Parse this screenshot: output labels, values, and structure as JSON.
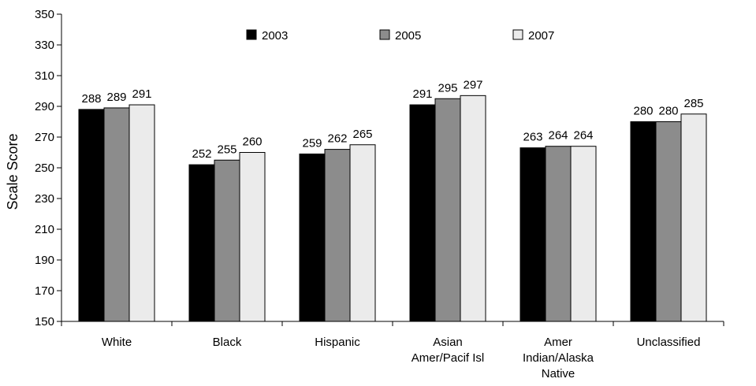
{
  "chart_data": {
    "type": "bar",
    "title": "",
    "xlabel": "",
    "ylabel": "Scale Score",
    "ylim": [
      150,
      350
    ],
    "yticks": [
      150,
      170,
      190,
      210,
      230,
      250,
      270,
      290,
      310,
      330,
      350
    ],
    "grid": false,
    "legend_position": "top",
    "categories": [
      [
        "White"
      ],
      [
        "Black"
      ],
      [
        "Hispanic"
      ],
      [
        "Asian",
        "Amer/Pacif Isl"
      ],
      [
        "Amer",
        "Indian/Alaska",
        "Native"
      ],
      [
        "Unclassified"
      ]
    ],
    "series": [
      {
        "name": "2003",
        "values": [
          288,
          252,
          259,
          291,
          263,
          280
        ],
        "color": "#000000"
      },
      {
        "name": "2005",
        "values": [
          289,
          255,
          262,
          295,
          264,
          280
        ],
        "color": "#8c8c8c"
      },
      {
        "name": "2007",
        "values": [
          291,
          260,
          265,
          297,
          264,
          285
        ],
        "color": "#ebebeb"
      }
    ]
  }
}
